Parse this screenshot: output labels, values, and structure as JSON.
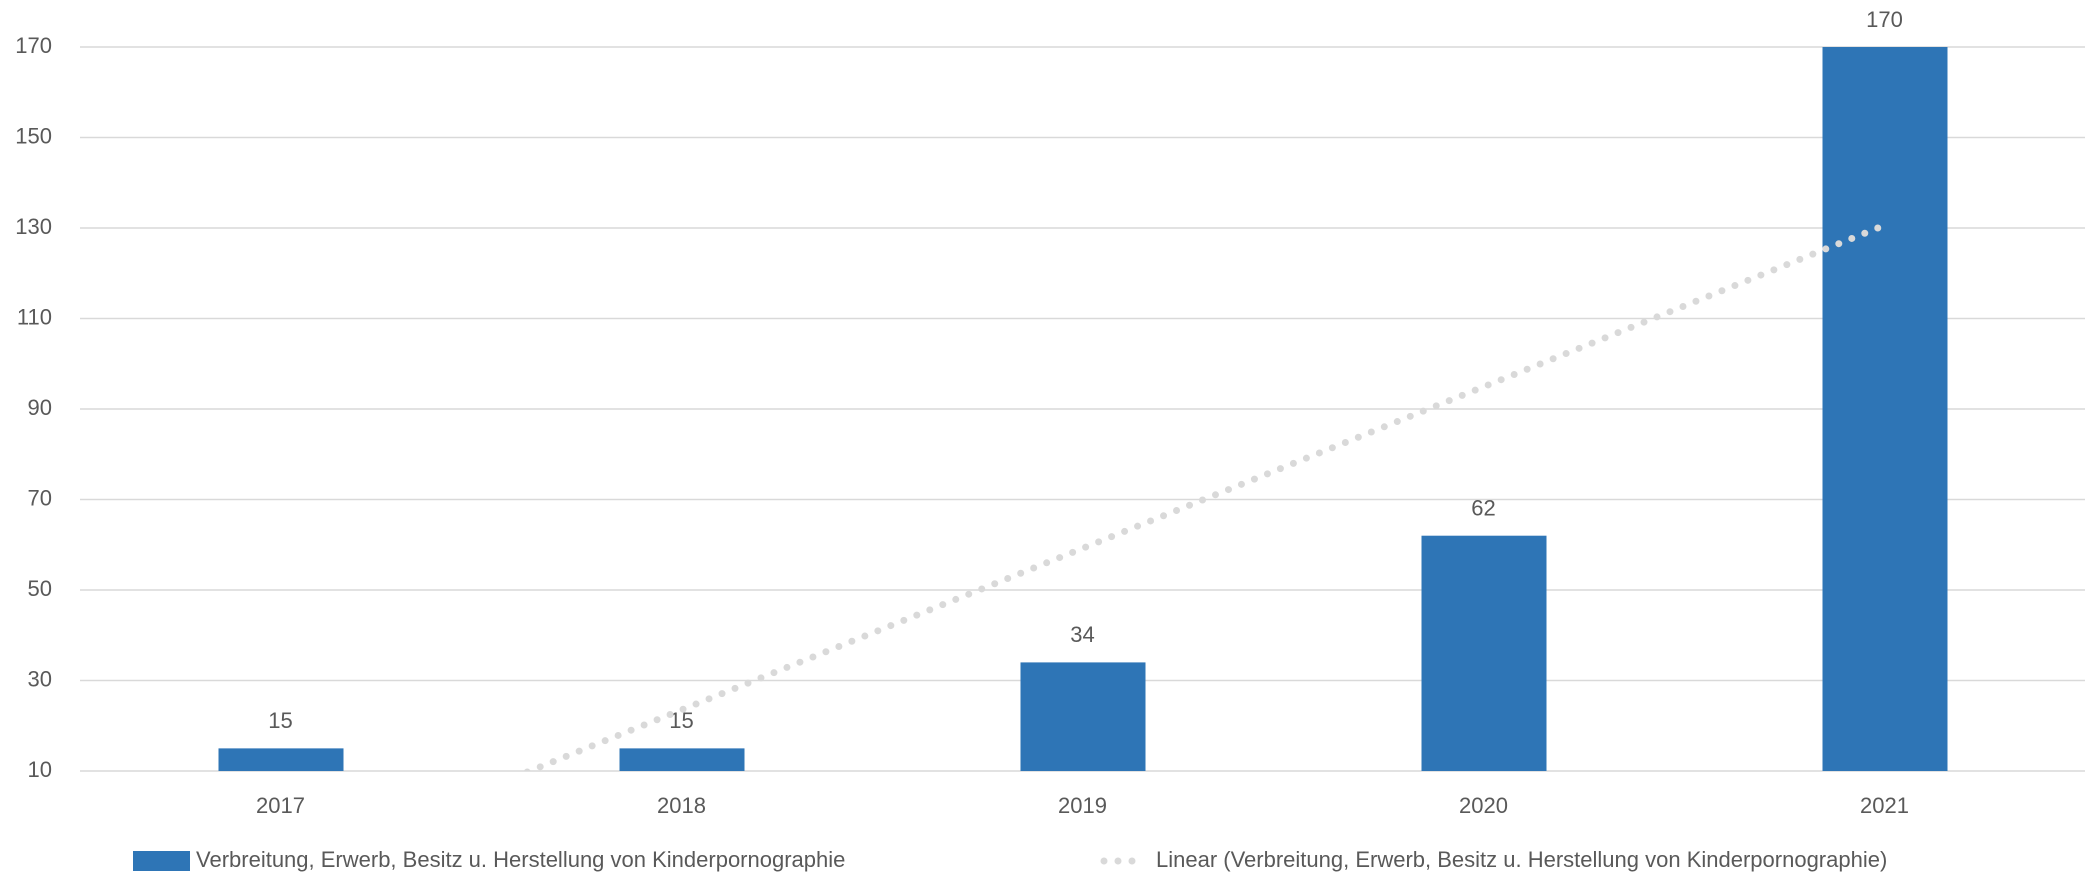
{
  "chart_data": {
    "type": "bar",
    "categories": [
      "2017",
      "2018",
      "2019",
      "2020",
      "2021"
    ],
    "series": [
      {
        "name": "Verbreitung, Erwerb, Besitz u. Herstellung von Kinderpornographie",
        "color": "#2e75b6",
        "values": [
          15,
          15,
          34,
          62,
          170
        ]
      }
    ],
    "trendline": {
      "name": "Linear (Verbreitung, Erwerb, Besitz u. Herstellung von Kinderpornographie)",
      "type": "linear",
      "color": "#d9d9d9"
    },
    "ylim": [
      10,
      170
    ],
    "yticks": [
      10,
      30,
      50,
      70,
      90,
      110,
      130,
      150,
      170
    ],
    "grid": true,
    "legend": "bottom"
  }
}
